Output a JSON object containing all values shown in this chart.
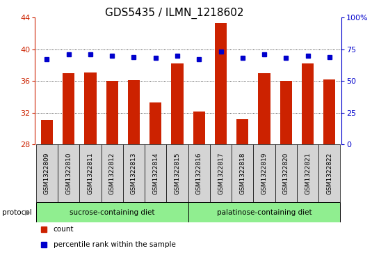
{
  "title": "GDS5435 / ILMN_1218602",
  "samples": [
    "GSM1322809",
    "GSM1322810",
    "GSM1322811",
    "GSM1322812",
    "GSM1322813",
    "GSM1322814",
    "GSM1322815",
    "GSM1322816",
    "GSM1322817",
    "GSM1322818",
    "GSM1322819",
    "GSM1322820",
    "GSM1322821",
    "GSM1322822"
  ],
  "counts": [
    31.1,
    37.0,
    37.1,
    36.0,
    36.1,
    33.3,
    38.2,
    32.1,
    43.3,
    31.2,
    37.0,
    36.0,
    38.2,
    36.2
  ],
  "percentile_ranks": [
    67,
    71,
    71,
    70,
    69,
    68,
    70,
    67,
    73,
    68,
    71,
    68,
    70,
    69
  ],
  "ylim_left": [
    28,
    44
  ],
  "ylim_right": [
    0,
    100
  ],
  "yticks_left": [
    28,
    32,
    36,
    40,
    44
  ],
  "yticks_right": [
    0,
    25,
    50,
    75,
    100
  ],
  "bar_color": "#cc2200",
  "dot_color": "#0000cc",
  "group1_label": "sucrose-containing diet",
  "group2_label": "palatinose-containing diet",
  "group1_indices": [
    0,
    1,
    2,
    3,
    4,
    5,
    6
  ],
  "group2_indices": [
    7,
    8,
    9,
    10,
    11,
    12,
    13
  ],
  "group_bg_color": "#90EE90",
  "sample_bg_color": "#d4d4d4",
  "protocol_label": "protocol",
  "legend_count_label": "count",
  "legend_percentile_label": "percentile rank within the sample",
  "title_fontsize": 11,
  "tick_fontsize": 8,
  "label_fontsize": 8,
  "bar_width": 0.55
}
